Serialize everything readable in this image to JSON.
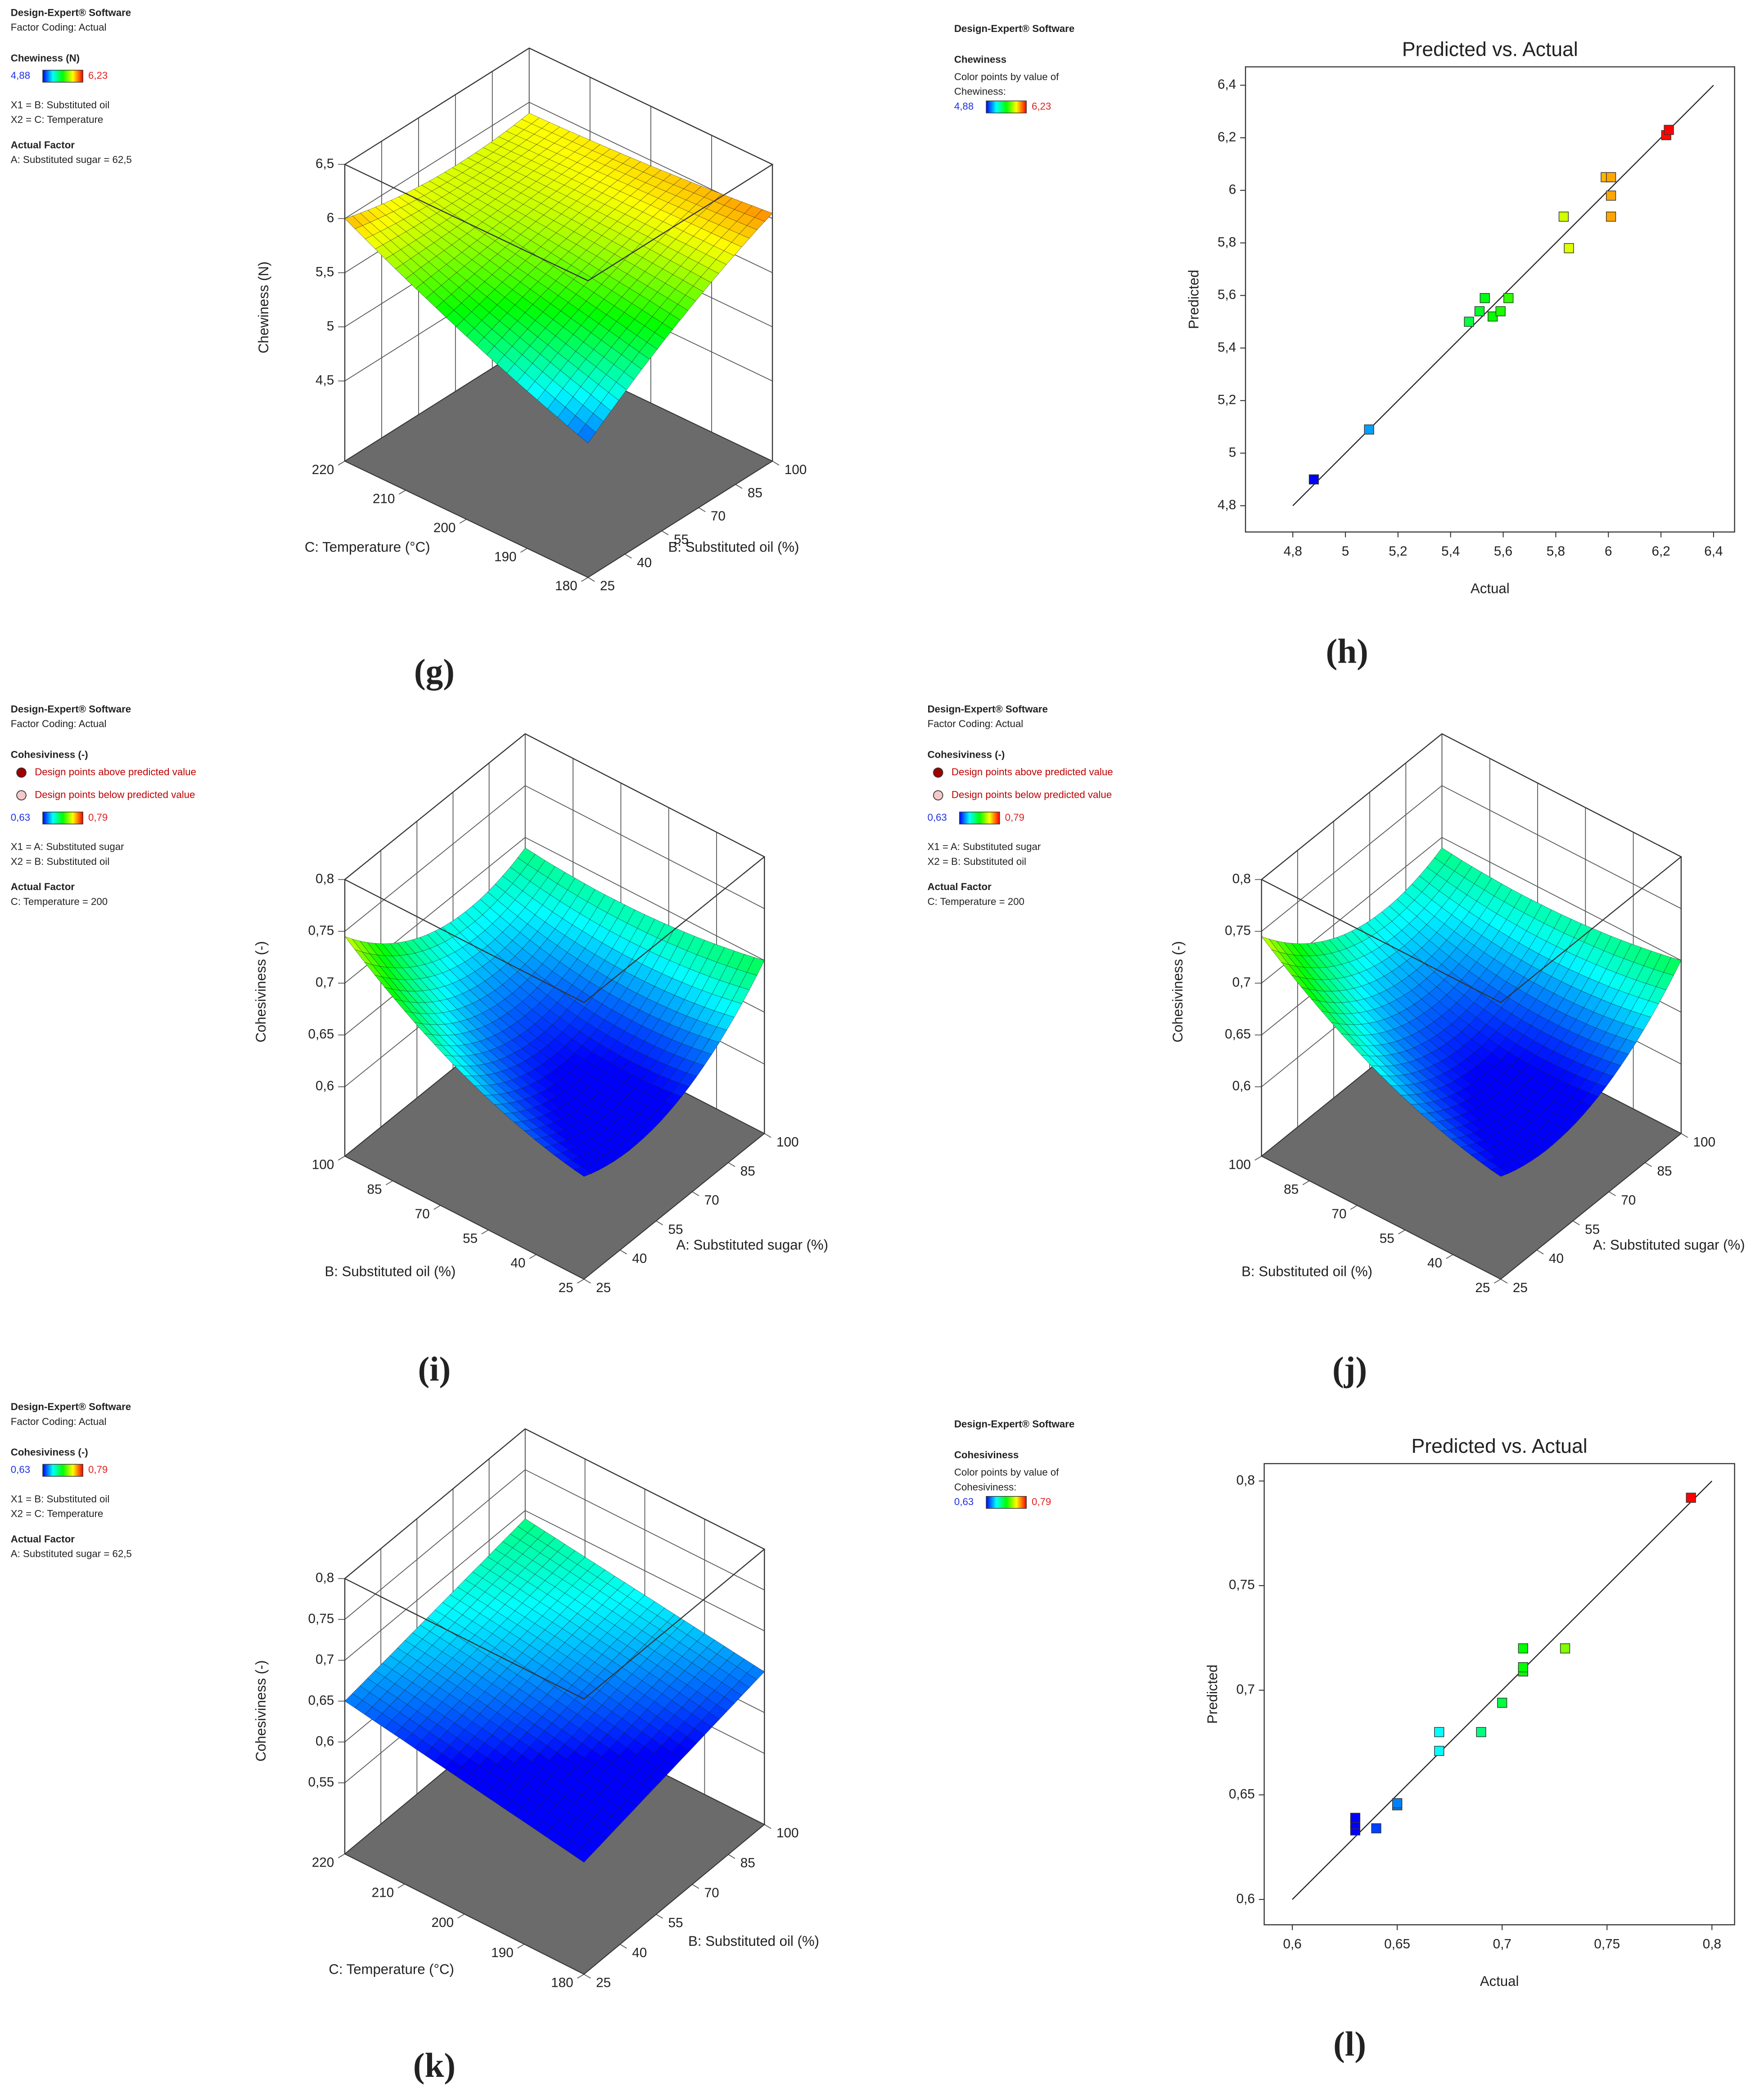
{
  "chart_data": [
    {
      "type": "surface3d",
      "label": "(g)",
      "info_top": [
        "Design-Expert® Software",
        "Factor Coding: Actual"
      ],
      "response": "Chewiness (N)",
      "color_range": [
        {
          "value": 4.88,
          "label": "4,88"
        },
        {
          "value": 6.23,
          "label": "6,23"
        }
      ],
      "factors": [
        "X1 = B: Substituted oil",
        "X2 = C: Temperature"
      ],
      "actual_factor_heading": "Actual Factor",
      "actual_factor": "A: Substituted sugar = 62,5",
      "zlabel": "Chewiness (N)",
      "x1label": "B: Substituted oil (%)",
      "x2label": "C: Temperature (°C)",
      "x1lim": [
        25,
        100
      ],
      "x1ticks": [
        25,
        40,
        55,
        70,
        85,
        100
      ],
      "x2lim": [
        180,
        220
      ],
      "x2ticks": [
        180,
        190,
        200,
        210,
        220
      ],
      "zlim": [
        3.76,
        6.5
      ],
      "zticks": [
        {
          "value": 4.5,
          "label": "4,5"
        },
        5,
        {
          "value": 5.5,
          "label": "5,5"
        },
        6,
        {
          "value": 6.5,
          "label": "6,5"
        }
      ],
      "surface_x1": [
        25,
        62.5,
        100
      ],
      "surface_x2": [
        180,
        200,
        220
      ],
      "surface_z": [
        [
          5.0,
          5.6,
          6.05
        ],
        [
          5.45,
          5.75,
          5.95
        ],
        [
          6.0,
          5.85,
          5.9
        ]
      ]
    },
    {
      "type": "scatter",
      "label": "(h)",
      "info_top": [
        "Design-Expert® Software"
      ],
      "response": "Chewiness",
      "color_note": [
        "Color points by value of",
        "Chewiness:"
      ],
      "color_range": [
        {
          "value": 4.88,
          "label": "4,88"
        },
        {
          "value": 6.23,
          "label": "6,23"
        }
      ],
      "title": "Predicted vs. Actual",
      "xlabel": "Actual",
      "ylabel": "Predicted",
      "x": [
        4.88,
        5.09,
        5.47,
        5.51,
        5.53,
        5.56,
        5.59,
        5.62,
        5.83,
        5.85,
        5.99,
        6.01,
        6.01,
        6.01,
        6.22,
        6.23
      ],
      "values": [
        4.9,
        5.09,
        5.5,
        5.54,
        5.59,
        5.52,
        5.54,
        5.59,
        5.9,
        5.78,
        6.05,
        6.05,
        5.98,
        5.9,
        6.21,
        6.23
      ],
      "xlim": [
        4.62,
        6.48
      ],
      "ylim": [
        4.7,
        6.47
      ],
      "xticks": [
        {
          "value": 4.8,
          "label": "4,8"
        },
        5,
        {
          "value": 5.2,
          "label": "5,2"
        },
        {
          "value": 5.4,
          "label": "5,4"
        },
        {
          "value": 5.6,
          "label": "5,6"
        },
        {
          "value": 5.8,
          "label": "5,8"
        },
        6,
        {
          "value": 6.2,
          "label": "6,2"
        },
        {
          "value": 6.4,
          "label": "6,4"
        }
      ],
      "yticks": [
        {
          "value": 4.8,
          "label": "4,8"
        },
        5,
        {
          "value": 5.2,
          "label": "5,2"
        },
        {
          "value": 5.4,
          "label": "5,4"
        },
        {
          "value": 5.6,
          "label": "5,6"
        },
        {
          "value": 5.8,
          "label": "5,8"
        },
        6,
        {
          "value": 6.2,
          "label": "6,2"
        },
        {
          "value": 6.4,
          "label": "6,4"
        }
      ]
    },
    {
      "type": "surface3d",
      "label": "(i)",
      "info_top": [
        "Design-Expert® Software",
        "Factor Coding: Actual"
      ],
      "response": "Cohesiviness (-)",
      "legend_items": [
        "Design points above predicted value",
        "Design points below predicted value"
      ],
      "color_range": [
        {
          "value": 0.63,
          "label": "0,63"
        },
        {
          "value": 0.79,
          "label": "0,79"
        }
      ],
      "factors": [
        "X1 = A: Substituted sugar",
        "X2 = B: Substituted oil"
      ],
      "actual_factor_heading": "Actual Factor",
      "actual_factor": "C: Temperature = 200",
      "zlabel": "Cohesiviness (-)",
      "x1label": "A: Substituted sugar (%)",
      "x2label": "B: Substituted oil (%)",
      "x1lim": [
        25,
        100
      ],
      "x1ticks": [
        25,
        40,
        55,
        70,
        85,
        100
      ],
      "x2lim": [
        25,
        100
      ],
      "x2ticks": [
        25,
        40,
        55,
        70,
        85,
        100
      ],
      "zlim": [
        0.533,
        0.8
      ],
      "zticks": [
        {
          "value": 0.6,
          "label": "0,6"
        },
        {
          "value": 0.65,
          "label": "0,65"
        },
        {
          "value": 0.7,
          "label": "0,7"
        },
        {
          "value": 0.75,
          "label": "0,75"
        },
        {
          "value": 0.8,
          "label": "0,8"
        }
      ],
      "surface_x1": [
        25,
        62.5,
        100
      ],
      "surface_x2": [
        25,
        62.5,
        100
      ],
      "surface_z": [
        [
          0.632,
          0.63,
          0.7
        ],
        [
          0.67,
          0.635,
          0.685
        ],
        [
          0.745,
          0.68,
          0.69
        ]
      ]
    },
    {
      "type": "surface3d",
      "label": "(j)",
      "info_top": [
        "Design-Expert® Software",
        "Factor Coding: Actual"
      ],
      "response": "Cohesiviness (-)",
      "legend_items": [
        "Design points above predicted value",
        "Design points below predicted value"
      ],
      "color_range": [
        {
          "value": 0.63,
          "label": "0,63"
        },
        {
          "value": 0.79,
          "label": "0,79"
        }
      ],
      "factors": [
        "X1 = A: Substituted sugar",
        "X2 = B: Substituted oil"
      ],
      "actual_factor_heading": "Actual Factor",
      "actual_factor": "C: Temperature = 200",
      "zlabel": "Cohesiviness (-)",
      "x1label": "A: Substituted sugar (%)",
      "x2label": "B: Substituted oil (%)",
      "x1lim": [
        25,
        100
      ],
      "x1ticks": [
        25,
        40,
        55,
        70,
        85,
        100
      ],
      "x2lim": [
        25,
        100
      ],
      "x2ticks": [
        25,
        40,
        55,
        70,
        85,
        100
      ],
      "zlim": [
        0.533,
        0.8
      ],
      "zticks": [
        {
          "value": 0.6,
          "label": "0,6"
        },
        {
          "value": 0.65,
          "label": "0,65"
        },
        {
          "value": 0.7,
          "label": "0,7"
        },
        {
          "value": 0.75,
          "label": "0,75"
        },
        {
          "value": 0.8,
          "label": "0,8"
        }
      ],
      "surface_x1": [
        25,
        62.5,
        100
      ],
      "surface_x2": [
        25,
        62.5,
        100
      ],
      "surface_z": [
        [
          0.632,
          0.63,
          0.7
        ],
        [
          0.67,
          0.635,
          0.685
        ],
        [
          0.745,
          0.68,
          0.69
        ]
      ]
    },
    {
      "type": "surface3d",
      "label": "(k)",
      "info_top": [
        "Design-Expert® Software",
        "Factor Coding: Actual"
      ],
      "response": "Cohesiviness (-)",
      "color_range": [
        {
          "value": 0.63,
          "label": "0,63"
        },
        {
          "value": 0.79,
          "label": "0,79"
        }
      ],
      "factors": [
        "X1 = B: Substituted oil",
        "X2 = C: Temperature"
      ],
      "actual_factor_heading": "Actual Factor",
      "actual_factor": "A: Substituted sugar = 62,5",
      "zlabel": "Cohesiviness (-)",
      "x1label": "B: Substituted oil (%)",
      "x2label": "C: Temperature (°C)",
      "x1lim": [
        25,
        100
      ],
      "x1ticks": [
        25,
        40,
        55,
        70,
        85,
        100
      ],
      "x2lim": [
        180,
        220
      ],
      "x2ticks": [
        180,
        190,
        200,
        210,
        220
      ],
      "zlim": [
        0.463,
        0.8
      ],
      "zticks": [
        {
          "value": 0.55,
          "label": "0,55"
        },
        {
          "value": 0.6,
          "label": "0,6"
        },
        {
          "value": 0.65,
          "label": "0,65"
        },
        {
          "value": 0.7,
          "label": "0,7"
        },
        {
          "value": 0.75,
          "label": "0,75"
        },
        {
          "value": 0.8,
          "label": "0,8"
        }
      ],
      "surface_x1": [
        25,
        62.5,
        100
      ],
      "surface_x2": [
        180,
        200,
        220
      ],
      "surface_z": [
        [
          0.6,
          0.625,
          0.65
        ],
        [
          0.625,
          0.65,
          0.67
        ],
        [
          0.65,
          0.67,
          0.69
        ]
      ]
    },
    {
      "type": "scatter",
      "label": "(l)",
      "info_top": [
        "Design-Expert® Software"
      ],
      "response": "Cohesiviness",
      "color_note": [
        "Color points by value of",
        "Cohesiviness:"
      ],
      "color_range": [
        {
          "value": 0.63,
          "label": "0,63"
        },
        {
          "value": 0.79,
          "label": "0,79"
        }
      ],
      "title": "Predicted vs. Actual",
      "xlabel": "Actual",
      "ylabel": "Predicted",
      "x": [
        0.63,
        0.63,
        0.63,
        0.64,
        0.65,
        0.65,
        0.67,
        0.67,
        0.69,
        0.7,
        0.71,
        0.71,
        0.71,
        0.73,
        0.79
      ],
      "values": [
        0.633,
        0.636,
        0.639,
        0.634,
        0.645,
        0.646,
        0.671,
        0.68,
        0.68,
        0.694,
        0.709,
        0.711,
        0.72,
        0.72,
        0.792
      ],
      "xlim": [
        0.5866,
        0.8108
      ],
      "ylim": [
        0.5879,
        0.8083
      ],
      "xticks": [
        {
          "value": 0.6,
          "label": "0,6"
        },
        {
          "value": 0.65,
          "label": "0,65"
        },
        {
          "value": 0.7,
          "label": "0,7"
        },
        {
          "value": 0.75,
          "label": "0,75"
        },
        {
          "value": 0.8,
          "label": "0,8"
        }
      ],
      "yticks": [
        {
          "value": 0.6,
          "label": "0,6"
        },
        {
          "value": 0.65,
          "label": "0,65"
        },
        {
          "value": 0.7,
          "label": "0,7"
        },
        {
          "value": 0.75,
          "label": "0,75"
        },
        {
          "value": 0.8,
          "label": "0,8"
        }
      ]
    }
  ]
}
